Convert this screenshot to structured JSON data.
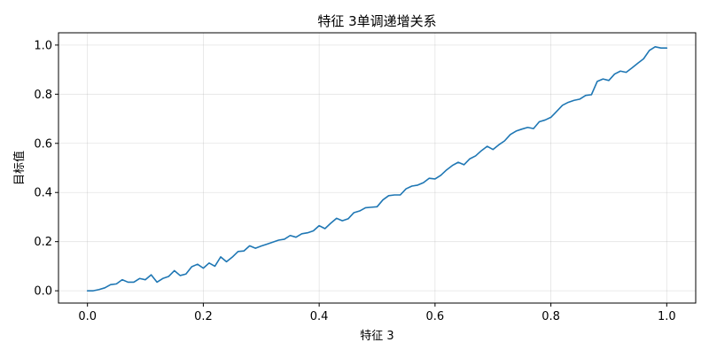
{
  "chart_data": {
    "type": "line",
    "title": "特征 3单调递增关系",
    "xlabel": "特征 3",
    "ylabel": "目标值",
    "xlim": [
      -0.05,
      1.05
    ],
    "ylim": [
      -0.05,
      1.05
    ],
    "xticks": [
      0.0,
      0.2,
      0.4,
      0.6,
      0.8,
      1.0
    ],
    "yticks": [
      0.0,
      0.2,
      0.4,
      0.6,
      0.8,
      1.0
    ],
    "xtick_labels": [
      "0.0",
      "0.2",
      "0.4",
      "0.6",
      "0.8",
      "1.0"
    ],
    "ytick_labels": [
      "0.0",
      "0.2",
      "0.4",
      "0.6",
      "0.8",
      "1.0"
    ],
    "grid": true,
    "legend": "none",
    "series": [
      {
        "color": "#1f77b4",
        "x": [
          0.0,
          0.01,
          0.02,
          0.03,
          0.04,
          0.05,
          0.06,
          0.07,
          0.08,
          0.09,
          0.1,
          0.11,
          0.12,
          0.13,
          0.14,
          0.15,
          0.16,
          0.17,
          0.18,
          0.19,
          0.2,
          0.21,
          0.22,
          0.23,
          0.24,
          0.25,
          0.26,
          0.27,
          0.28,
          0.29,
          0.3,
          0.31,
          0.32,
          0.33,
          0.34,
          0.35,
          0.36,
          0.37,
          0.38,
          0.39,
          0.4,
          0.41,
          0.42,
          0.43,
          0.44,
          0.45,
          0.46,
          0.47,
          0.48,
          0.49,
          0.5,
          0.51,
          0.52,
          0.53,
          0.54,
          0.55,
          0.56,
          0.57,
          0.58,
          0.59,
          0.6,
          0.61,
          0.62,
          0.63,
          0.64,
          0.65,
          0.66,
          0.67,
          0.68,
          0.69,
          0.7,
          0.71,
          0.72,
          0.73,
          0.74,
          0.75,
          0.76,
          0.77,
          0.78,
          0.79,
          0.8,
          0.81,
          0.82,
          0.83,
          0.84,
          0.85,
          0.86,
          0.87,
          0.88,
          0.89,
          0.9,
          0.91,
          0.92,
          0.93,
          0.94,
          0.95,
          0.96,
          0.97,
          0.98,
          0.99,
          1.0
        ],
        "y": [
          0.0,
          0.0,
          0.005,
          0.012,
          0.025,
          0.028,
          0.045,
          0.035,
          0.035,
          0.05,
          0.045,
          0.065,
          0.035,
          0.05,
          0.058,
          0.082,
          0.062,
          0.068,
          0.098,
          0.108,
          0.092,
          0.113,
          0.1,
          0.138,
          0.118,
          0.137,
          0.16,
          0.162,
          0.183,
          0.173,
          0.182,
          0.19,
          0.198,
          0.206,
          0.21,
          0.225,
          0.218,
          0.232,
          0.236,
          0.244,
          0.265,
          0.253,
          0.275,
          0.295,
          0.285,
          0.293,
          0.318,
          0.325,
          0.338,
          0.34,
          0.342,
          0.37,
          0.387,
          0.39,
          0.39,
          0.415,
          0.426,
          0.43,
          0.44,
          0.458,
          0.455,
          0.47,
          0.492,
          0.51,
          0.523,
          0.513,
          0.537,
          0.549,
          0.57,
          0.588,
          0.575,
          0.594,
          0.61,
          0.636,
          0.65,
          0.658,
          0.665,
          0.66,
          0.688,
          0.695,
          0.706,
          0.73,
          0.755,
          0.767,
          0.775,
          0.78,
          0.795,
          0.798,
          0.852,
          0.862,
          0.856,
          0.882,
          0.894,
          0.889,
          0.907,
          0.926,
          0.944,
          0.978,
          0.993,
          0.988,
          0.988
        ]
      }
    ]
  }
}
